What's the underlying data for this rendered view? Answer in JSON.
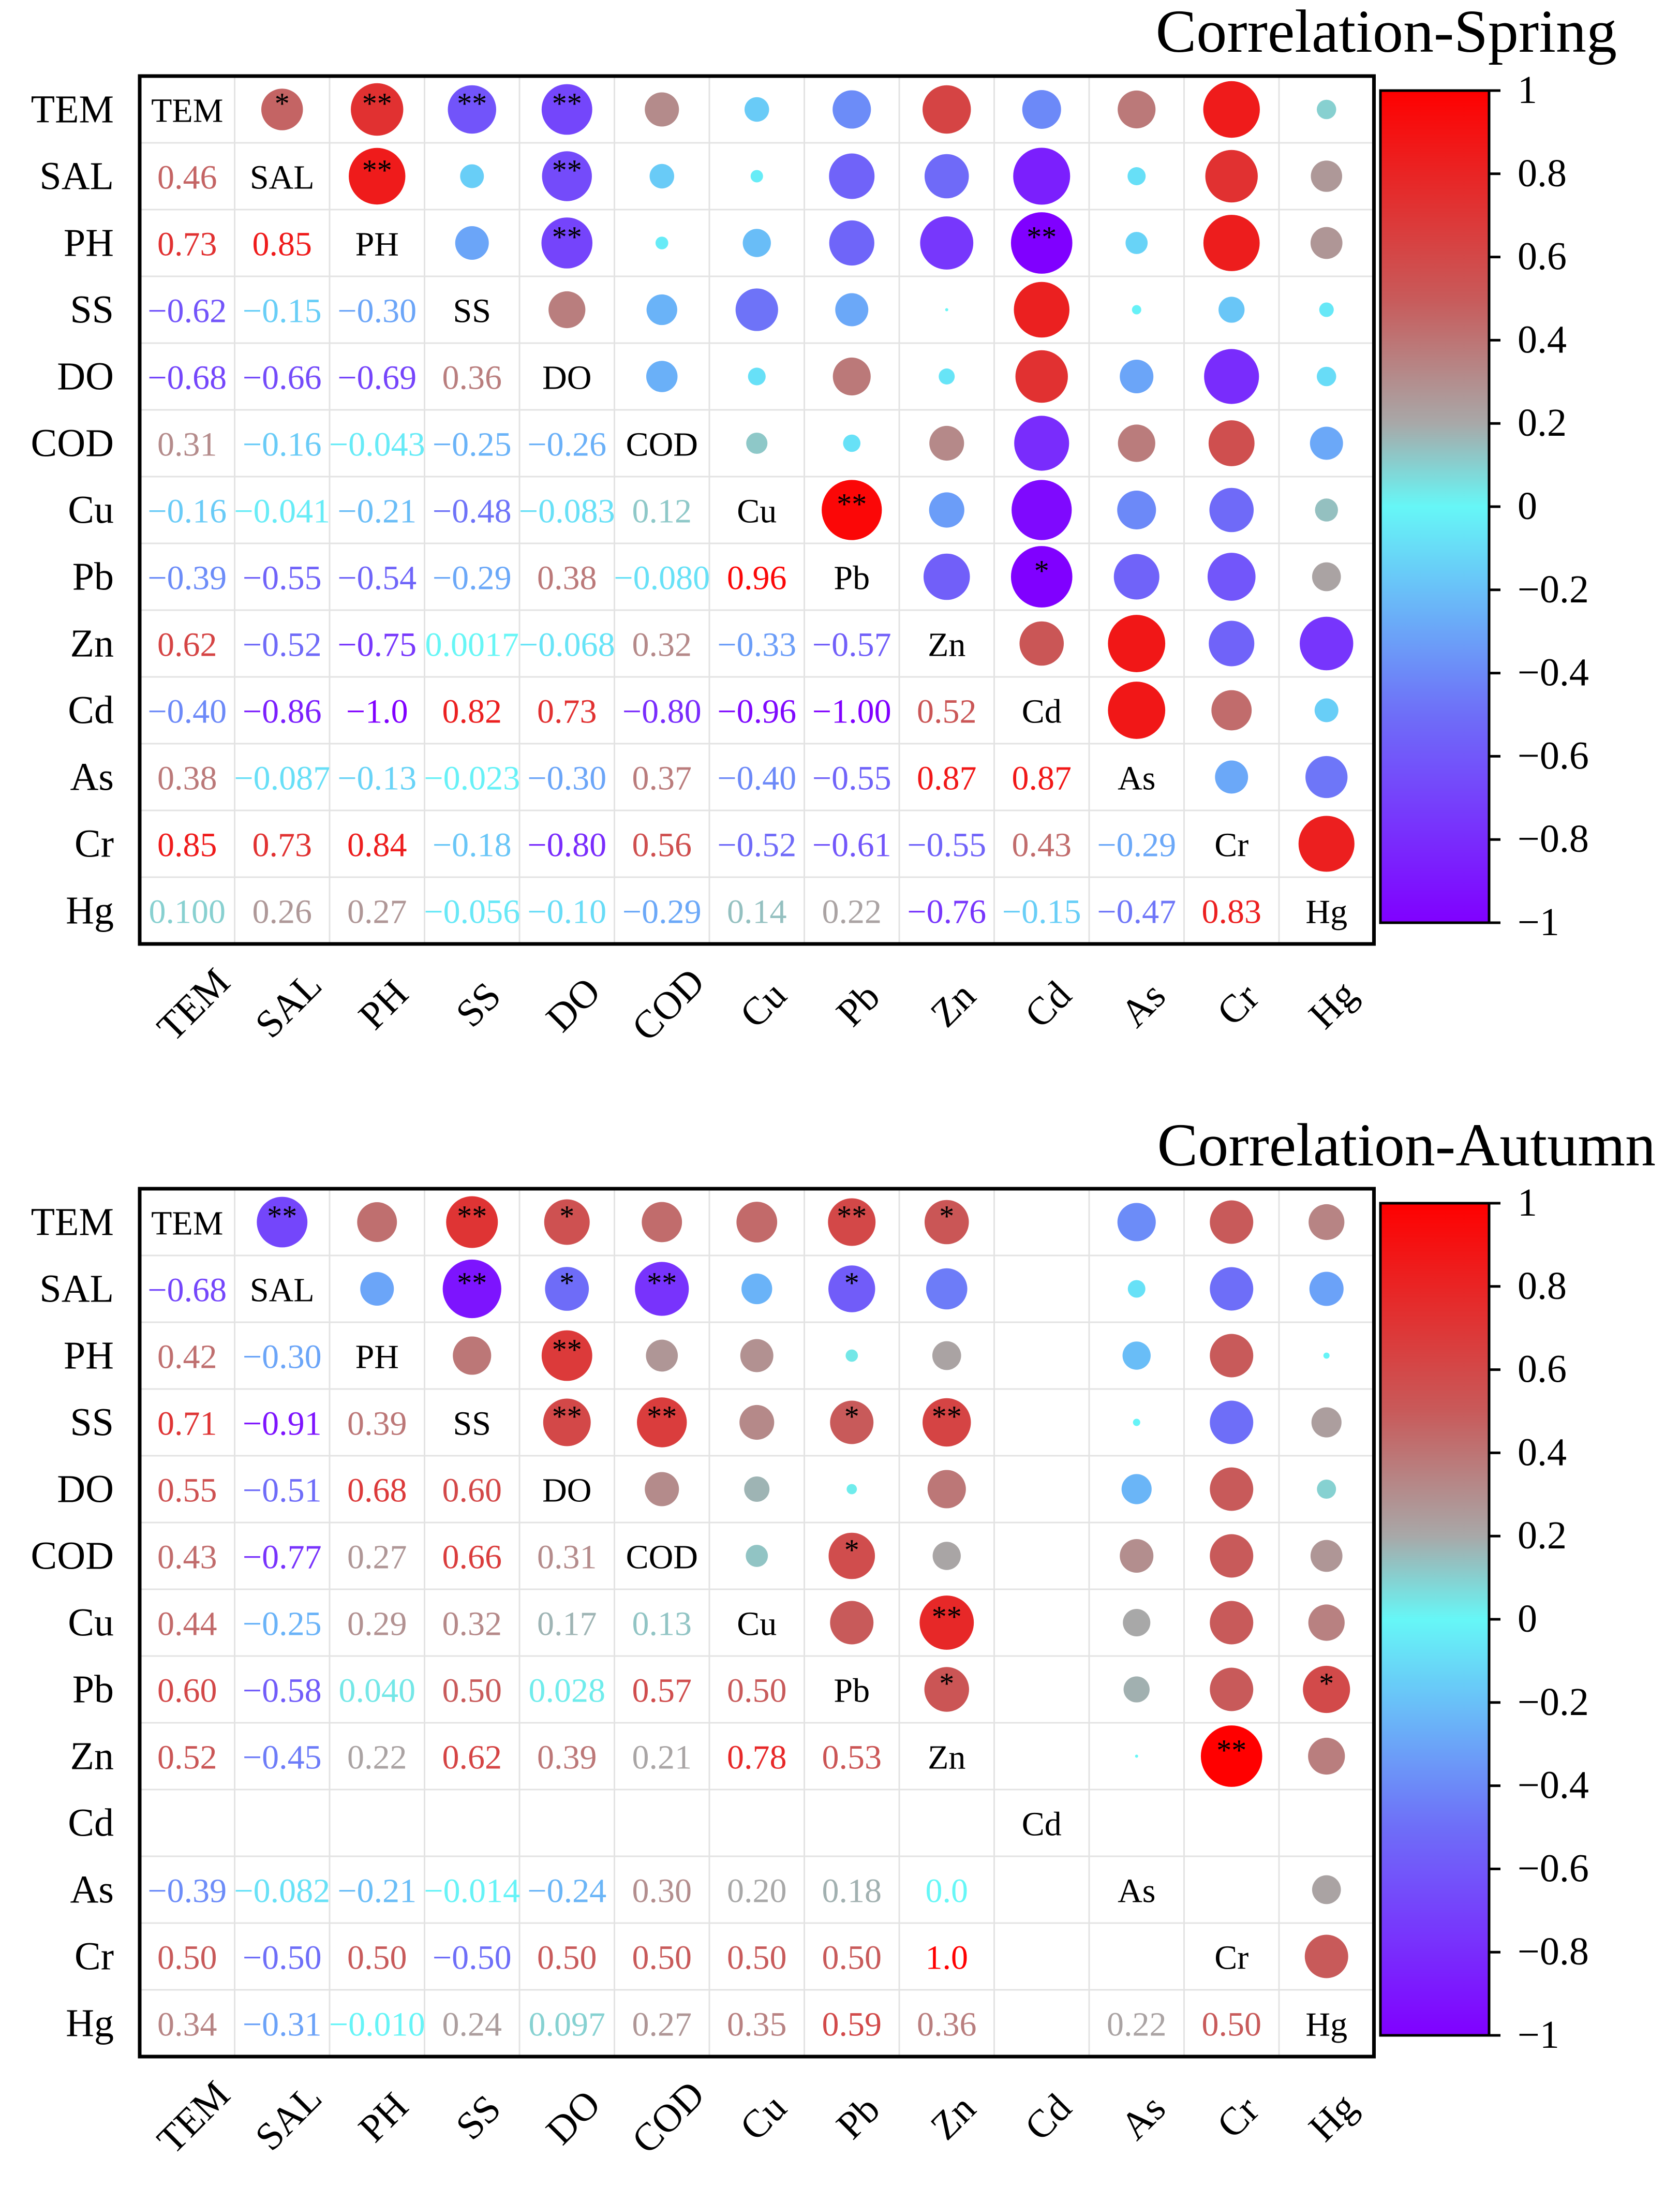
{
  "chart_data": [
    {
      "type": "heatmap",
      "title": "Correlation-Spring",
      "variables": [
        "TEM",
        "SAL",
        "PH",
        "SS",
        "DO",
        "COD",
        "Cu",
        "Pb",
        "Zn",
        "Cd",
        "As",
        "Cr",
        "Hg"
      ],
      "lower_labels": [
        [],
        [
          "0.46"
        ],
        [
          "0.73",
          "0.85"
        ],
        [
          "−0.62",
          "−0.15",
          "−0.30"
        ],
        [
          "−0.68",
          "−0.66",
          "−0.69",
          "0.36"
        ],
        [
          "0.31",
          "−0.16",
          "−0.043",
          "−0.25",
          "−0.26"
        ],
        [
          "−0.16",
          "−0.041",
          "−0.21",
          "−0.48",
          "−0.083",
          "0.12"
        ],
        [
          "−0.39",
          "−0.55",
          "−0.54",
          "−0.29",
          "0.38",
          "−0.080",
          "0.96"
        ],
        [
          "0.62",
          "−0.52",
          "−0.75",
          "0.0017",
          "−0.068",
          "0.32",
          "−0.33",
          "−0.57"
        ],
        [
          "−0.40",
          "−0.86",
          "−1.0",
          "0.82",
          "0.73",
          "−0.80",
          "−0.96",
          "−1.00",
          "0.52"
        ],
        [
          "0.38",
          "−0.087",
          "−0.13",
          "−0.023",
          "−0.30",
          "0.37",
          "−0.40",
          "−0.55",
          "0.87",
          "0.87"
        ],
        [
          "0.85",
          "0.73",
          "0.84",
          "−0.18",
          "−0.80",
          "0.56",
          "−0.52",
          "−0.61",
          "−0.55",
          "0.43",
          "−0.29"
        ],
        [
          "0.100",
          "0.26",
          "0.27",
          "−0.056",
          "−0.10",
          "−0.29",
          "0.14",
          "0.22",
          "−0.76",
          "−0.15",
          "−0.47",
          "0.83"
        ]
      ],
      "upper_r": [
        [
          null,
          0.46,
          0.73,
          -0.62,
          -0.68,
          0.31,
          -0.16,
          -0.39,
          0.62,
          -0.4,
          0.38,
          0.85,
          0.1
        ],
        [
          null,
          null,
          0.85,
          -0.15,
          -0.66,
          -0.16,
          -0.041,
          -0.55,
          -0.52,
          -0.86,
          -0.087,
          0.73,
          0.26
        ],
        [
          null,
          null,
          null,
          -0.3,
          -0.69,
          -0.043,
          -0.21,
          -0.54,
          -0.75,
          -1.0,
          -0.13,
          0.84,
          0.27
        ],
        [
          null,
          null,
          null,
          null,
          0.36,
          -0.25,
          -0.48,
          -0.29,
          0.0017,
          0.82,
          -0.023,
          -0.18,
          -0.056
        ],
        [
          null,
          null,
          null,
          null,
          null,
          -0.26,
          -0.083,
          0.38,
          -0.068,
          0.73,
          -0.3,
          -0.8,
          -0.1
        ],
        [
          null,
          null,
          null,
          null,
          null,
          null,
          0.12,
          -0.08,
          0.32,
          -0.8,
          0.37,
          0.56,
          -0.29
        ],
        [
          null,
          null,
          null,
          null,
          null,
          null,
          null,
          0.96,
          -0.33,
          -0.96,
          -0.4,
          -0.52,
          0.14
        ],
        [
          null,
          null,
          null,
          null,
          null,
          null,
          null,
          null,
          -0.57,
          -1.0,
          -0.55,
          -0.61,
          0.22
        ],
        [
          null,
          null,
          null,
          null,
          null,
          null,
          null,
          null,
          null,
          0.52,
          0.87,
          -0.55,
          -0.76
        ],
        [
          null,
          null,
          null,
          null,
          null,
          null,
          null,
          null,
          null,
          null,
          0.87,
          0.43,
          -0.15
        ],
        [
          null,
          null,
          null,
          null,
          null,
          null,
          null,
          null,
          null,
          null,
          null,
          -0.29,
          -0.47
        ],
        [
          null,
          null,
          null,
          null,
          null,
          null,
          null,
          null,
          null,
          null,
          null,
          null,
          0.83
        ],
        [
          null,
          null,
          null,
          null,
          null,
          null,
          null,
          null,
          null,
          null,
          null,
          null,
          null
        ]
      ],
      "significance": [
        [
          0,
          1,
          "*"
        ],
        [
          0,
          2,
          "**"
        ],
        [
          0,
          3,
          "**"
        ],
        [
          0,
          4,
          "**"
        ],
        [
          1,
          2,
          "**"
        ],
        [
          1,
          4,
          "**"
        ],
        [
          2,
          4,
          "**"
        ],
        [
          2,
          9,
          "**"
        ],
        [
          6,
          7,
          "**"
        ],
        [
          7,
          9,
          "*"
        ]
      ],
      "colorbar": {
        "min": -1,
        "max": 1,
        "ticks": [
          "1",
          "0.8",
          "0.6",
          "0.4",
          "0.2",
          "0",
          "−0.2",
          "−0.4",
          "−0.6",
          "−0.8",
          "−1"
        ]
      }
    },
    {
      "type": "heatmap",
      "title": "Correlation-Autumn",
      "variables": [
        "TEM",
        "SAL",
        "PH",
        "SS",
        "DO",
        "COD",
        "Cu",
        "Pb",
        "Zn",
        "Cd",
        "As",
        "Cr",
        "Hg"
      ],
      "lower_labels": [
        [],
        [
          "−0.68"
        ],
        [
          "0.42",
          "−0.30"
        ],
        [
          "0.71",
          "−0.91",
          "0.39"
        ],
        [
          "0.55",
          "−0.51",
          "0.68",
          "0.60"
        ],
        [
          "0.43",
          "−0.77",
          "0.27",
          "0.66",
          "0.31"
        ],
        [
          "0.44",
          "−0.25",
          "0.29",
          "0.32",
          "0.17",
          "0.13"
        ],
        [
          "0.60",
          "−0.58",
          "0.040",
          "0.50",
          "0.028",
          "0.57",
          "0.50"
        ],
        [
          "0.52",
          "−0.45",
          "0.22",
          "0.62",
          "0.39",
          "0.21",
          "0.78",
          "0.53"
        ],
        [
          "",
          "",
          "",
          "",
          "",
          "",
          "",
          "",
          ""
        ],
        [
          "−0.39",
          "−0.082",
          "−0.21",
          "−0.014",
          "−0.24",
          "0.30",
          "0.20",
          "0.18",
          "0.0",
          ""
        ],
        [
          "0.50",
          "−0.50",
          "0.50",
          "−0.50",
          "0.50",
          "0.50",
          "0.50",
          "0.50",
          "1.0",
          "",
          ""
        ],
        [
          "0.34",
          "−0.31",
          "−0.010",
          "0.24",
          "0.097",
          "0.27",
          "0.35",
          "0.59",
          "0.36",
          "",
          "0.22",
          "0.50"
        ]
      ],
      "upper_r": [
        [
          null,
          -0.68,
          0.42,
          0.71,
          0.55,
          0.43,
          0.44,
          0.6,
          0.52,
          null,
          -0.39,
          0.5,
          0.34
        ],
        [
          null,
          null,
          -0.3,
          -0.91,
          -0.51,
          -0.77,
          -0.25,
          -0.58,
          -0.45,
          null,
          -0.082,
          -0.5,
          -0.31
        ],
        [
          null,
          null,
          null,
          0.39,
          0.68,
          0.27,
          0.29,
          0.04,
          0.22,
          null,
          -0.21,
          0.5,
          -0.01
        ],
        [
          null,
          null,
          null,
          null,
          0.6,
          0.66,
          0.32,
          0.5,
          0.62,
          null,
          -0.014,
          -0.5,
          0.24
        ],
        [
          null,
          null,
          null,
          null,
          null,
          0.31,
          0.17,
          0.028,
          0.39,
          null,
          -0.24,
          0.5,
          0.097
        ],
        [
          null,
          null,
          null,
          null,
          null,
          null,
          0.13,
          0.57,
          0.21,
          null,
          0.3,
          0.5,
          0.27
        ],
        [
          null,
          null,
          null,
          null,
          null,
          null,
          null,
          0.5,
          0.78,
          null,
          0.2,
          0.5,
          0.35
        ],
        [
          null,
          null,
          null,
          null,
          null,
          null,
          null,
          null,
          0.53,
          null,
          0.18,
          0.5,
          0.59
        ],
        [
          null,
          null,
          null,
          null,
          null,
          null,
          null,
          null,
          null,
          null,
          0.0,
          1.0,
          0.36
        ],
        [
          null,
          null,
          null,
          null,
          null,
          null,
          null,
          null,
          null,
          null,
          null,
          null,
          null
        ],
        [
          null,
          null,
          null,
          null,
          null,
          null,
          null,
          null,
          null,
          null,
          null,
          null,
          0.22
        ],
        [
          null,
          null,
          null,
          null,
          null,
          null,
          null,
          null,
          null,
          null,
          null,
          null,
          0.5
        ],
        [
          null,
          null,
          null,
          null,
          null,
          null,
          null,
          null,
          null,
          null,
          null,
          null,
          null
        ]
      ],
      "significance": [
        [
          0,
          1,
          "**"
        ],
        [
          0,
          3,
          "**"
        ],
        [
          0,
          4,
          "*"
        ],
        [
          0,
          7,
          "**"
        ],
        [
          0,
          8,
          "*"
        ],
        [
          1,
          3,
          "**"
        ],
        [
          1,
          4,
          "*"
        ],
        [
          1,
          5,
          "**"
        ],
        [
          1,
          7,
          "*"
        ],
        [
          2,
          4,
          "**"
        ],
        [
          3,
          4,
          "**"
        ],
        [
          3,
          5,
          "**"
        ],
        [
          3,
          7,
          "*"
        ],
        [
          3,
          8,
          "**"
        ],
        [
          5,
          7,
          "*"
        ],
        [
          6,
          8,
          "**"
        ],
        [
          7,
          8,
          "*"
        ],
        [
          7,
          12,
          "*"
        ],
        [
          8,
          11,
          "**"
        ]
      ],
      "colorbar": {
        "min": -1,
        "max": 1,
        "ticks": [
          "1",
          "0.8",
          "0.6",
          "0.4",
          "0.2",
          "0",
          "−0.2",
          "−0.4",
          "−0.6",
          "−0.8",
          "−1"
        ]
      }
    }
  ]
}
